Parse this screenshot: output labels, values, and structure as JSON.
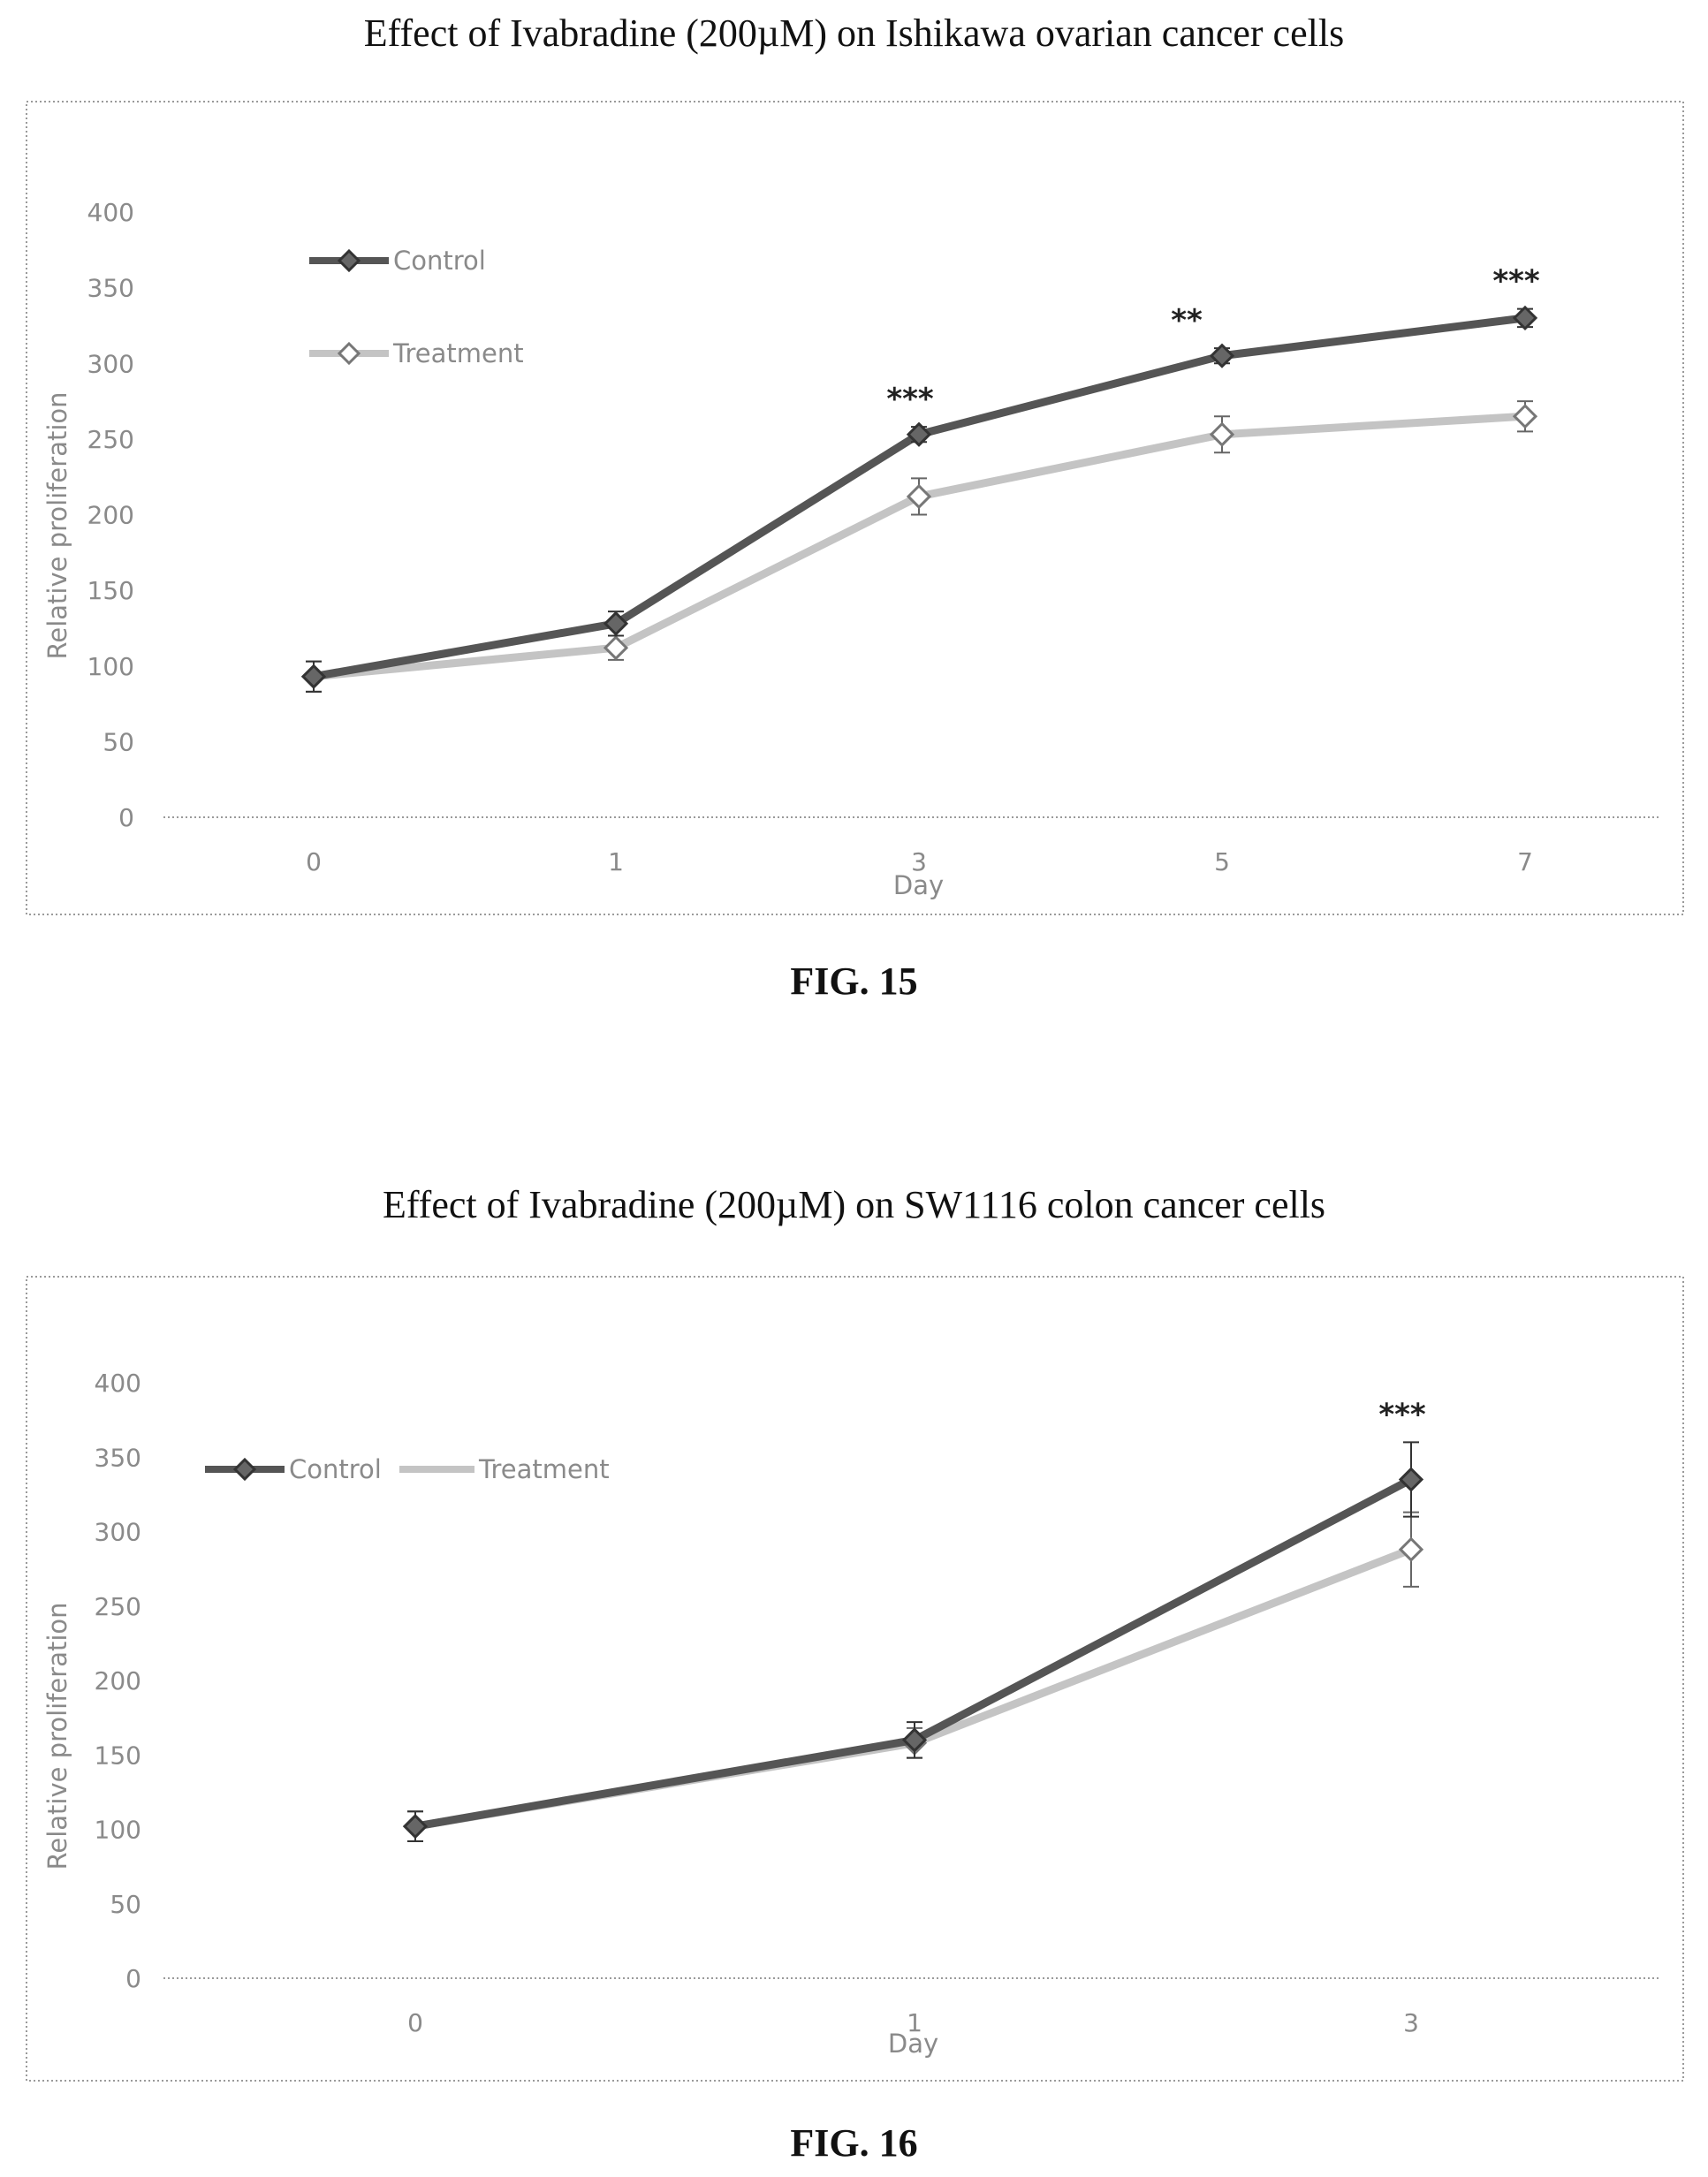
{
  "figures": [
    {
      "title": "Effect of Ivabradine (200µM) on Ishikawa ovarian cancer cells",
      "caption": "FIG. 15"
    },
    {
      "title": "Effect of Ivabradine (200µM) on  SW1116 colon cancer cells",
      "caption": "FIG. 16"
    }
  ],
  "colors": {
    "control": "#555555",
    "treatment": "#c4c4c4",
    "frame": "#9a9a9a",
    "axis": "#9a9a9a",
    "text": "#8a8a8a"
  },
  "chart_data": [
    {
      "type": "line",
      "title": "Effect of Ivabradine (200µM) on Ishikawa ovarian cancer cells",
      "xlabel": "Day",
      "ylabel": "Relative proliferation",
      "categories": [
        "0",
        "1",
        "3",
        "5",
        "7"
      ],
      "ylim": [
        0,
        400
      ],
      "yticks": [
        0,
        50,
        100,
        150,
        200,
        250,
        300,
        350,
        400
      ],
      "grid": false,
      "legend_position": "top-left",
      "series": [
        {
          "name": "Control",
          "values": [
            93,
            128,
            253,
            305,
            330
          ],
          "errors": [
            10,
            8,
            5,
            5,
            6
          ]
        },
        {
          "name": "Treatment",
          "values": [
            93,
            112,
            212,
            253,
            265
          ],
          "errors": [
            10,
            8,
            12,
            12,
            10
          ]
        }
      ],
      "annotations": [
        {
          "category": "3",
          "text": "***"
        },
        {
          "category": "5",
          "text": "**"
        },
        {
          "category": "7",
          "text": "***"
        }
      ]
    },
    {
      "type": "line",
      "title": "Effect of Ivabradine (200µM) on  SW1116 colon cancer cells",
      "xlabel": "Day",
      "ylabel": "Relative proliferation",
      "categories": [
        "0",
        "1",
        "3"
      ],
      "ylim": [
        0,
        400
      ],
      "yticks": [
        0,
        50,
        100,
        150,
        200,
        250,
        300,
        350,
        400
      ],
      "grid": false,
      "legend_position": "top-left",
      "series": [
        {
          "name": "Control",
          "values": [
            102,
            160,
            335
          ],
          "errors": [
            10,
            12,
            25
          ]
        },
        {
          "name": "Treatment",
          "values": [
            102,
            158,
            288
          ],
          "errors": [
            10,
            10,
            25
          ]
        }
      ],
      "annotations": [
        {
          "category": "3",
          "text": "***"
        }
      ]
    }
  ]
}
